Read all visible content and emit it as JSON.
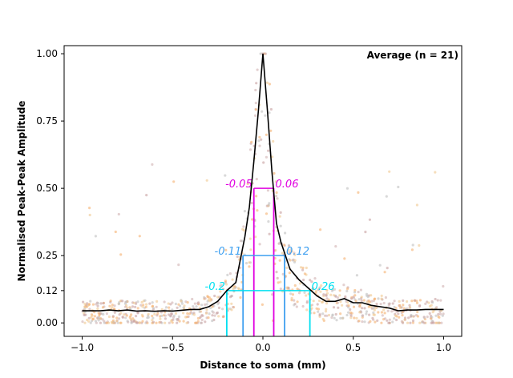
{
  "chart_data": {
    "type": "line",
    "xlabel": "Distance to soma (mm)",
    "ylabel": "Normalised Peak-Peak Amplitude",
    "xlim": [
      -1.1,
      1.1
    ],
    "ylim": [
      -0.05,
      1.03
    ],
    "x_ticks": [
      -1.0,
      -0.5,
      0.0,
      0.5,
      1.0
    ],
    "x_tick_labels": [
      "−1.0",
      "−0.5",
      "0.0",
      "0.5",
      "1.0"
    ],
    "y_ticks": [
      0.0,
      0.12,
      0.25,
      0.5,
      0.75,
      1.0
    ],
    "y_tick_labels": [
      "0.00",
      "0.12",
      "0.25",
      "0.50",
      "0.75",
      "1.00"
    ],
    "annotation": "Average (n = 21)",
    "series": [
      {
        "color": "#000000",
        "x": [
          -1.0,
          -0.95,
          -0.9,
          -0.85,
          -0.8,
          -0.75,
          -0.7,
          -0.65,
          -0.6,
          -0.55,
          -0.5,
          -0.45,
          -0.4,
          -0.35,
          -0.3,
          -0.25,
          -0.2,
          -0.15,
          -0.1,
          -0.075,
          -0.05,
          -0.025,
          0.0,
          0.025,
          0.05,
          0.075,
          0.1,
          0.15,
          0.2,
          0.25,
          0.3,
          0.35,
          0.4,
          0.45,
          0.5,
          0.55,
          0.6,
          0.65,
          0.7,
          0.75,
          0.8,
          0.85,
          0.9,
          0.95,
          1.0
        ],
        "y": [
          0.045,
          0.045,
          0.045,
          0.048,
          0.045,
          0.048,
          0.044,
          0.045,
          0.043,
          0.045,
          0.044,
          0.047,
          0.05,
          0.05,
          0.06,
          0.08,
          0.12,
          0.15,
          0.32,
          0.43,
          0.6,
          0.79,
          1.0,
          0.79,
          0.56,
          0.37,
          0.3,
          0.2,
          0.16,
          0.13,
          0.1,
          0.08,
          0.08,
          0.09,
          0.075,
          0.075,
          0.065,
          0.06,
          0.055,
          0.045,
          0.048,
          0.048,
          0.05,
          0.05,
          0.05
        ]
      }
    ],
    "thresholds": [
      {
        "level": 0.5,
        "left": -0.05,
        "right": 0.06,
        "left_label": "-0.05",
        "right_label": "0.06",
        "color": "#e000e0"
      },
      {
        "level": 0.25,
        "left": -0.11,
        "right": 0.12,
        "left_label": "-0.11",
        "right_label": "0.12",
        "color": "#3fa0f0"
      },
      {
        "level": 0.12,
        "left": -0.2,
        "right": 0.26,
        "left_label": "-0.2",
        "right_label": "0.26",
        "color": "#00e0f0"
      }
    ],
    "scatter_colors": [
      "#c8a0a0",
      "#f0c890",
      "#d0b0b0",
      "#f5b070",
      "#c0c0c0"
    ]
  }
}
